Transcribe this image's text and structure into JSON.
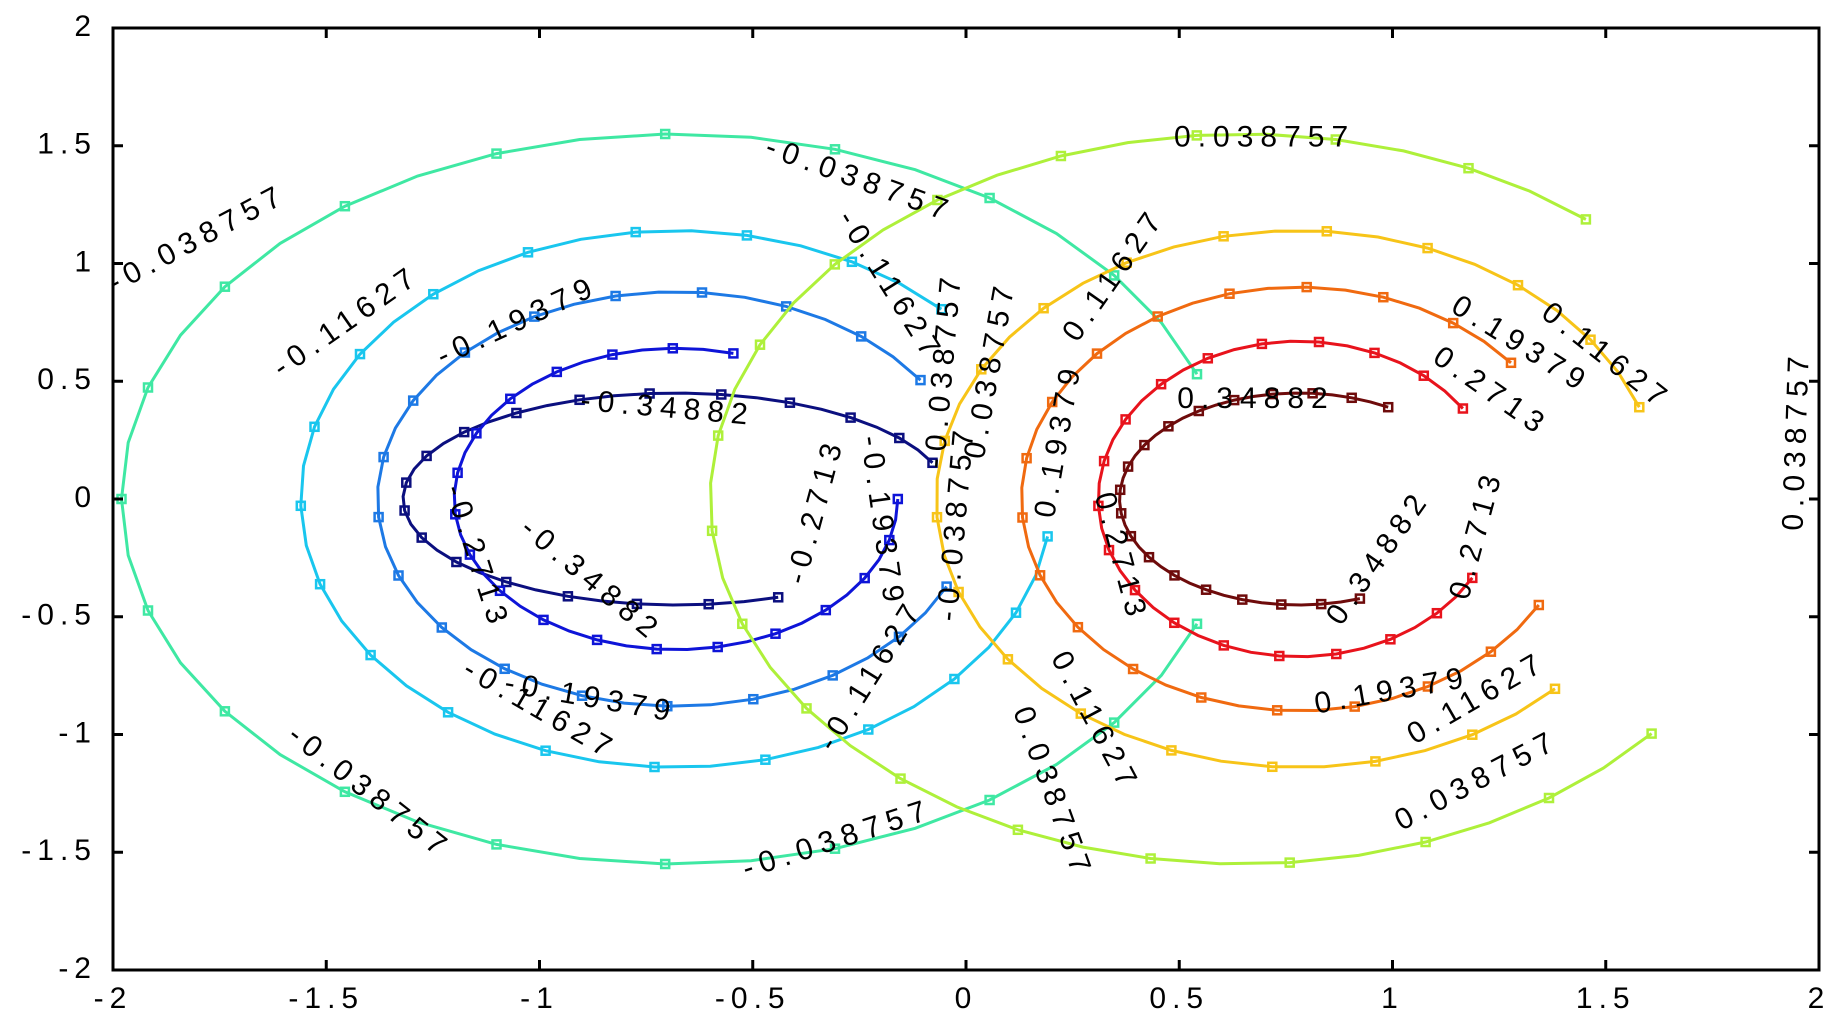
{
  "chart_data": {
    "type": "contour",
    "title": "",
    "xlabel": "",
    "ylabel": "",
    "xlim": [
      -2,
      2
    ],
    "ylim": [
      -2,
      2
    ],
    "grid": false,
    "legend": "none",
    "x_ticks": [
      "-2",
      "-1.5",
      "-1",
      "-0.5",
      "0",
      "0.5",
      "1",
      "1.5",
      "2"
    ],
    "y_ticks": [
      "-2",
      "-1.5",
      "-1",
      "-0.5",
      "0",
      "0.5",
      "1",
      "1.5",
      "2"
    ],
    "levels": [
      {
        "level": "-0.34882",
        "color": "#0b0f7f",
        "center": [
          -0.68,
          0
        ],
        "rx": 0.64,
        "ry": 0.45,
        "start_deg": 20,
        "end_deg": 292
      },
      {
        "level": "-0.2713",
        "color": "#0e14d8",
        "center": [
          -0.68,
          0
        ],
        "rx": 0.52,
        "ry": 0.64,
        "start_deg": 75,
        "end_deg": 360
      },
      {
        "level": "-0.19379",
        "color": "#1d79e5",
        "center": [
          -0.68,
          0
        ],
        "rx": 0.7,
        "ry": 0.88,
        "start_deg": 35,
        "end_deg": 335
      },
      {
        "level": "-0.11627",
        "color": "#19c6ee",
        "center": [
          -0.68,
          0
        ],
        "rx": 0.88,
        "ry": 1.14,
        "start_deg": 45,
        "end_deg": 352
      },
      {
        "level": "-0.038757",
        "color": "#3fe8a3",
        "center": [
          -0.68,
          0
        ],
        "rx": 1.3,
        "ry": 1.55,
        "start_deg": 20,
        "end_deg": 340
      },
      {
        "level": "0.34882",
        "color": "#6e0b0b",
        "center": [
          0.78,
          0
        ],
        "rx": 0.42,
        "ry": 0.45,
        "start_deg": 60,
        "end_deg": 290
      },
      {
        "level": "0.2713",
        "color": "#e8131c",
        "center": [
          0.78,
          0
        ],
        "rx": 0.47,
        "ry": 0.67,
        "start_deg": 35,
        "end_deg": 330
      },
      {
        "level": "0.19379",
        "color": "#f06a10",
        "center": [
          0.78,
          0
        ],
        "rx": 0.65,
        "ry": 0.9,
        "start_deg": 40,
        "end_deg": 330
      },
      {
        "level": "0.11627",
        "color": "#f7c418",
        "center": [
          0.78,
          0
        ],
        "rx": 0.85,
        "ry": 1.14,
        "start_deg": 20,
        "end_deg": 315
      },
      {
        "level": "0.038757",
        "color": "#aef03a",
        "center": [
          0.65,
          0
        ],
        "rx": 1.25,
        "ry": 1.55,
        "start_deg": 50,
        "end_deg": 320
      }
    ],
    "labels": [
      {
        "text": "-0.038757",
        "x": -1.8,
        "y": 1.1,
        "rot": -28
      },
      {
        "text": "-0.038757",
        "x": -0.25,
        "y": 1.35,
        "rot": 20
      },
      {
        "text": "-0.038757",
        "x": -1.4,
        "y": -1.25,
        "rot": 38
      },
      {
        "text": "-0.038757",
        "x": -0.3,
        "y": -1.45,
        "rot": -18
      },
      {
        "text": "-0.038757",
        "x": -0.05,
        "y": 0.55,
        "rot": -85
      },
      {
        "text": "-0.038757",
        "x": -0.02,
        "y": -0.1,
        "rot": -85
      },
      {
        "text": "-0.11627",
        "x": -1.45,
        "y": 0.75,
        "rot": -35
      },
      {
        "text": "-0.11627",
        "x": -1.0,
        "y": -0.9,
        "rot": 30
      },
      {
        "text": "-0.11627",
        "x": -0.18,
        "y": 0.9,
        "rot": 58
      },
      {
        "text": "-0.11627",
        "x": -0.22,
        "y": -0.75,
        "rot": -58
      },
      {
        "text": "-0.19379",
        "x": -1.05,
        "y": 0.75,
        "rot": -25
      },
      {
        "text": "-0.19379",
        "x": -0.88,
        "y": -0.85,
        "rot": 10
      },
      {
        "text": "-0.19379",
        "x": -0.2,
        "y": -0.1,
        "rot": 82
      },
      {
        "text": "-0.2713",
        "x": -1.15,
        "y": -0.25,
        "rot": 72
      },
      {
        "text": "-0.2713",
        "x": -0.35,
        "y": -0.05,
        "rot": -75
      },
      {
        "text": "-0.34882",
        "x": -0.7,
        "y": 0.38,
        "rot": 5
      },
      {
        "text": "-0.34882",
        "x": -0.88,
        "y": -0.35,
        "rot": 40
      },
      {
        "text": "0.038757",
        "x": 0.7,
        "y": 1.53,
        "rot": 0
      },
      {
        "text": "0.038757",
        "x": 1.2,
        "y": -1.2,
        "rot": -28
      },
      {
        "text": "0.038757",
        "x": 0.2,
        "y": -1.25,
        "rot": 70
      },
      {
        "text": "0.038757",
        "x": 0.06,
        "y": 0.55,
        "rot": -80
      },
      {
        "text": "0.038757",
        "x": 1.95,
        "y": 0.25,
        "rot": -88
      },
      {
        "text": "0.11627",
        "x": 0.35,
        "y": 0.95,
        "rot": -55
      },
      {
        "text": "0.11627",
        "x": 0.3,
        "y": -0.95,
        "rot": 62
      },
      {
        "text": "0.11627",
        "x": 1.2,
        "y": -0.85,
        "rot": -30
      },
      {
        "text": "0.11627",
        "x": 1.5,
        "y": 0.6,
        "rot": 38
      },
      {
        "text": "0.19379",
        "x": 0.22,
        "y": 0.25,
        "rot": -80
      },
      {
        "text": "0.19379",
        "x": 1.0,
        "y": -0.82,
        "rot": -10
      },
      {
        "text": "0.19379",
        "x": 1.3,
        "y": 0.65,
        "rot": 32
      },
      {
        "text": "0.2713",
        "x": 0.36,
        "y": -0.25,
        "rot": 75
      },
      {
        "text": "0.2713",
        "x": 1.23,
        "y": 0.45,
        "rot": 35
      },
      {
        "text": "0.2713",
        "x": 1.2,
        "y": -0.15,
        "rot": -75
      },
      {
        "text": "0.34882",
        "x": 0.68,
        "y": 0.42,
        "rot": 0
      },
      {
        "text": "0.34882",
        "x": 0.97,
        "y": -0.25,
        "rot": -55
      }
    ]
  }
}
